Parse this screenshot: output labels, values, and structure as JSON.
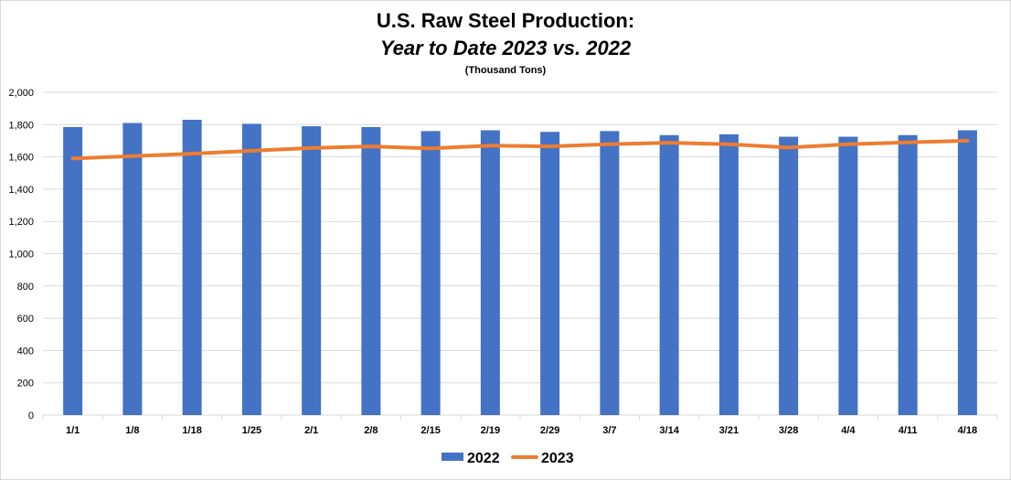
{
  "chart_data": {
    "type": "bar+line",
    "title": "U.S. Raw Steel Production:",
    "subtitle": "Year to Date 2023 vs. 2022",
    "unit_note": "(Thousand Tons)",
    "categories": [
      "1/1",
      "1/8",
      "1/18",
      "1/25",
      "2/1",
      "2/8",
      "2/15",
      "2/19",
      "2/29",
      "3/7",
      "3/14",
      "3/21",
      "3/28",
      "4/4",
      "4/11",
      "4/18"
    ],
    "series": [
      {
        "name": "2022",
        "kind": "bar",
        "color": "#4472c4",
        "values": [
          1785,
          1810,
          1830,
          1805,
          1790,
          1785,
          1760,
          1765,
          1755,
          1760,
          1735,
          1740,
          1725,
          1725,
          1735,
          1765
        ]
      },
      {
        "name": "2023",
        "kind": "line",
        "color": "#ed7d31",
        "values": [
          1590,
          1605,
          1620,
          1638,
          1655,
          1665,
          1652,
          1670,
          1665,
          1678,
          1688,
          1678,
          1658,
          1678,
          1690,
          1700
        ]
      }
    ],
    "ylim": [
      0,
      2000
    ],
    "yticks": [
      "0",
      "200",
      "400",
      "600",
      "800",
      "1,000",
      "1,200",
      "1,400",
      "1,600",
      "1,800",
      "2,000"
    ],
    "grid": true,
    "legend": "bottom"
  }
}
